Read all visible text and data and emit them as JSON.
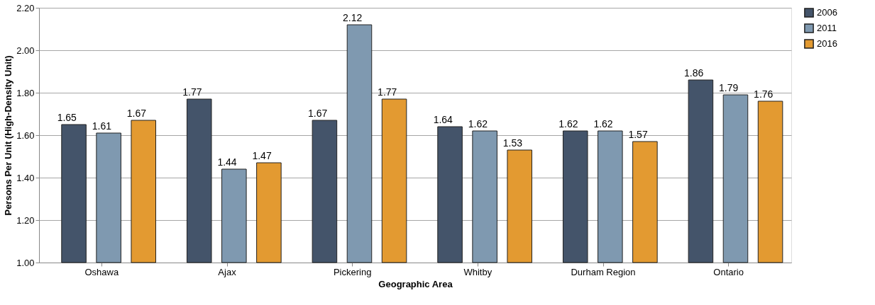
{
  "chart_data": {
    "type": "bar",
    "xlabel": "Geographic Area",
    "ylabel": "Persons Per Unit (High-Density Unit)",
    "categories": [
      "Oshawa",
      "Ajax",
      "Pickering",
      "Whitby",
      "Durham Region",
      "Ontario"
    ],
    "series": [
      {
        "name": "2006",
        "color": "#44546a",
        "values": [
          1.65,
          1.77,
          1.67,
          1.64,
          1.62,
          1.86
        ]
      },
      {
        "name": "2011",
        "color": "#7f99b0",
        "values": [
          1.61,
          1.44,
          2.12,
          1.62,
          1.62,
          1.79
        ]
      },
      {
        "name": "2016",
        "color": "#e39a31",
        "values": [
          1.67,
          1.47,
          1.77,
          1.53,
          1.57,
          1.76
        ]
      }
    ],
    "ylim": [
      1.0,
      2.2
    ],
    "yticks": [
      {
        "value": 1.0,
        "label": "1.00"
      },
      {
        "value": 1.2,
        "label": "1.20"
      },
      {
        "value": 1.4,
        "label": "1.40"
      },
      {
        "value": 1.6,
        "label": "1.60"
      },
      {
        "value": 1.8,
        "label": "1.80"
      },
      {
        "value": 2.0,
        "label": "2.00"
      },
      {
        "value": 2.2,
        "label": "2.20"
      }
    ],
    "grid": "y",
    "legend": "right",
    "data_labels": true
  }
}
